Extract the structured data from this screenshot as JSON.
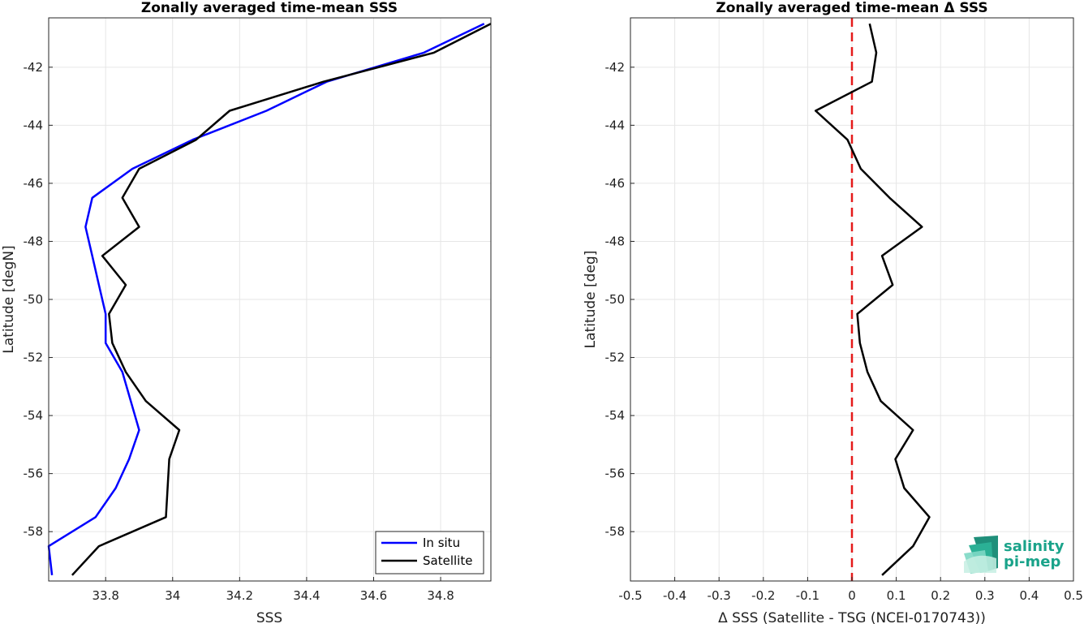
{
  "chart_data": [
    {
      "type": "line",
      "title": "Zonally averaged time-mean SSS",
      "xlabel": "SSS",
      "ylabel": "Latitude [degN]",
      "xlim": [
        33.63,
        34.95
      ],
      "ylim": [
        -59.7,
        -40.3
      ],
      "xticks": [
        33.8,
        34,
        34.2,
        34.4,
        34.6,
        34.8
      ],
      "xtick_labels": [
        "33.8",
        "34",
        "34.2",
        "34.4",
        "34.6",
        "34.8"
      ],
      "yticks": [
        -42,
        -44,
        -46,
        -48,
        -50,
        -52,
        -54,
        -56,
        -58
      ],
      "ytick_labels": [
        "-42",
        "-44",
        "-46",
        "-48",
        "-50",
        "-52",
        "-54",
        "-56",
        "-58"
      ],
      "grid": true,
      "legend_position": "bottom-right",
      "series": [
        {
          "name": "In situ",
          "color": "#0000ff",
          "x": [
            34.93,
            34.75,
            34.46,
            34.28,
            34.06,
            33.88,
            33.76,
            33.74,
            33.76,
            33.78,
            33.8,
            33.8,
            33.85,
            33.9,
            33.87,
            33.83,
            33.77,
            33.63,
            33.64
          ],
          "y": [
            -40.5,
            -41.5,
            -42.5,
            -43.5,
            -44.5,
            -45.5,
            -46.5,
            -47.5,
            -48.5,
            -49.5,
            -50.5,
            -51.5,
            -52.5,
            -54.5,
            -55.5,
            -56.5,
            -57.5,
            -58.5,
            -59.5
          ]
        },
        {
          "name": "Satellite",
          "color": "#000000",
          "x": [
            34.95,
            34.78,
            34.45,
            34.17,
            34.07,
            33.9,
            33.85,
            33.9,
            33.79,
            33.86,
            33.81,
            33.82,
            33.86,
            33.92,
            34.02,
            33.99,
            33.98,
            33.78,
            33.7
          ],
          "y": [
            -40.5,
            -41.5,
            -42.5,
            -43.5,
            -44.5,
            -45.5,
            -46.5,
            -47.5,
            -48.5,
            -49.5,
            -50.5,
            -51.5,
            -52.5,
            -53.5,
            -54.5,
            -55.5,
            -57.5,
            -58.5,
            -59.5
          ]
        }
      ]
    },
    {
      "type": "line",
      "title": "Zonally averaged time-mean Δ SSS",
      "xlabel": "Δ SSS (Satellite - TSG (NCEI-0170743))",
      "ylabel": "Latitude [deg]",
      "xlim": [
        -0.5,
        0.5
      ],
      "ylim": [
        -59.7,
        -40.3
      ],
      "xticks": [
        -0.5,
        -0.4,
        -0.3,
        -0.2,
        -0.1,
        0,
        0.1,
        0.2,
        0.3,
        0.4,
        0.5
      ],
      "xtick_labels": [
        "-0.5",
        "-0.4",
        "-0.3",
        "-0.2",
        "-0.1",
        "0",
        "0.1",
        "0.2",
        "0.3",
        "0.4",
        "0.5"
      ],
      "yticks": [
        -42,
        -44,
        -46,
        -48,
        -50,
        -52,
        -54,
        -56,
        -58
      ],
      "ytick_labels": [
        "-42",
        "-44",
        "-46",
        "-48",
        "-50",
        "-52",
        "-54",
        "-56",
        "-58"
      ],
      "grid": true,
      "reference_line": {
        "x": 0,
        "color": "#e41a1a",
        "style": "dashed"
      },
      "series": [
        {
          "color": "#000000",
          "x": [
            0.04,
            0.055,
            0.045,
            -0.082,
            -0.01,
            0.02,
            0.085,
            0.158,
            0.068,
            0.092,
            0.012,
            0.018,
            0.035,
            0.065,
            0.138,
            0.098,
            0.118,
            0.175,
            0.138,
            0.068
          ],
          "y": [
            -40.5,
            -41.5,
            -42.5,
            -43.5,
            -44.5,
            -45.5,
            -46.5,
            -47.5,
            -48.5,
            -49.5,
            -50.5,
            -51.5,
            -52.5,
            -53.5,
            -54.5,
            -55.5,
            -56.5,
            -57.5,
            -58.5,
            -59.5
          ]
        }
      ]
    }
  ],
  "logo": {
    "line1": "salinity",
    "line2": "pi-mep"
  }
}
